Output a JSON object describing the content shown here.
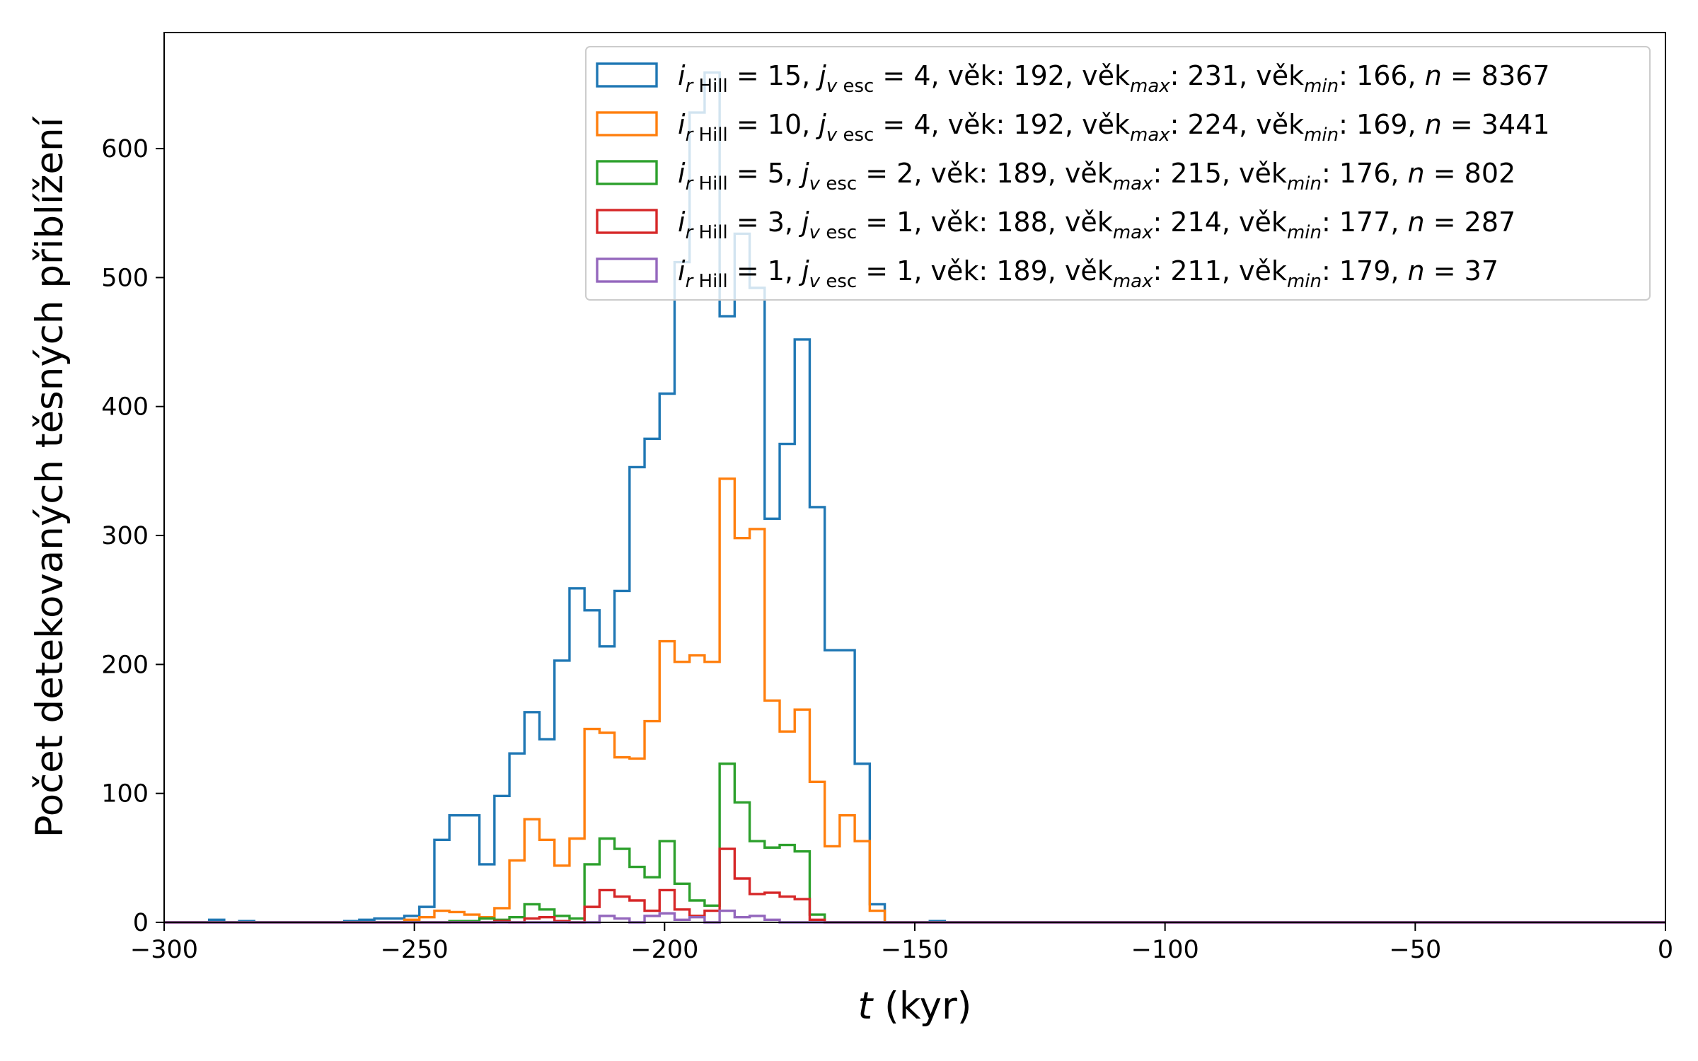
{
  "chart_data": {
    "type": "histogram-step",
    "xlabel_var": "t",
    "xlabel_unit": " (kyr)",
    "ylabel": "Počet detekovaných těsných přiblížení",
    "xlim": [
      -300,
      0
    ],
    "ylim": [
      0,
      690
    ],
    "grid": false,
    "legend_position": "top-right",
    "x_ticks": [
      -300,
      -250,
      -200,
      -150,
      -100,
      -50,
      0
    ],
    "x_tick_labels": [
      "−300",
      "−250",
      "−200",
      "−150",
      "−100",
      "−50",
      "0"
    ],
    "y_ticks": [
      0,
      100,
      200,
      300,
      400,
      500,
      600
    ],
    "y_tick_labels": [
      "0",
      "100",
      "200",
      "300",
      "400",
      "500",
      "600"
    ],
    "bin_start": -300,
    "bin_width": 3,
    "series": [
      {
        "name": "i_rHill = 15, j_vesc = 4, věk: 192, věk_max: 231, věk_min: 166, n = 8367",
        "legend": {
          "i": "15",
          "j": "4",
          "vek": "192",
          "vek_max": "231",
          "vek_min": "166",
          "n": "8367"
        },
        "color": "#1f77b4",
        "bins": [
          [
            -291,
            -288,
            2
          ],
          [
            -285,
            -282,
            1
          ],
          [
            -264,
            -261,
            1
          ],
          [
            -261,
            -258,
            2
          ],
          [
            -258,
            -255,
            3
          ],
          [
            -255,
            -252,
            3
          ],
          [
            -252,
            -249,
            5
          ],
          [
            -249,
            -246,
            12
          ],
          [
            -246,
            -243,
            64
          ],
          [
            -243,
            -240,
            83
          ],
          [
            -240,
            -237,
            83
          ],
          [
            -237,
            -234,
            45
          ],
          [
            -234,
            -231,
            98
          ],
          [
            -231,
            -228,
            131
          ],
          [
            -228,
            -225,
            163
          ],
          [
            -225,
            -222,
            142
          ],
          [
            -222,
            -219,
            203
          ],
          [
            -219,
            -216,
            259
          ],
          [
            -216,
            -213,
            242
          ],
          [
            -213,
            -210,
            214
          ],
          [
            -210,
            -207,
            257
          ],
          [
            -207,
            -204,
            353
          ],
          [
            -204,
            -201,
            375
          ],
          [
            -201,
            -198,
            410
          ],
          [
            -198,
            -195,
            512
          ],
          [
            -195,
            -192,
            628
          ],
          [
            -192,
            -189,
            659
          ],
          [
            -189,
            -186,
            470
          ],
          [
            -186,
            -183,
            534
          ],
          [
            -183,
            -180,
            492
          ],
          [
            -180,
            -177,
            313
          ],
          [
            -177,
            -174,
            371
          ],
          [
            -174,
            -171,
            452
          ],
          [
            -171,
            -168,
            322
          ],
          [
            -168,
            -165,
            211
          ],
          [
            -165,
            -162,
            211
          ],
          [
            -162,
            -159,
            123
          ],
          [
            -159,
            -156,
            14
          ],
          [
            -147,
            -144,
            1
          ]
        ]
      },
      {
        "name": "i_rHill = 10, j_vesc = 4, věk: 192, věk_max: 224, věk_min: 169, n = 3441",
        "legend": {
          "i": "10",
          "j": "4",
          "vek": "192",
          "vek_max": "224",
          "vek_min": "169",
          "n": "3441"
        },
        "color": "#ff7f0e",
        "bins": [
          [
            -252,
            -249,
            2
          ],
          [
            -249,
            -246,
            4
          ],
          [
            -246,
            -243,
            9
          ],
          [
            -243,
            -240,
            8
          ],
          [
            -240,
            -237,
            6
          ],
          [
            -237,
            -234,
            4
          ],
          [
            -234,
            -231,
            11
          ],
          [
            -231,
            -228,
            48
          ],
          [
            -228,
            -225,
            80
          ],
          [
            -225,
            -222,
            64
          ],
          [
            -222,
            -219,
            44
          ],
          [
            -219,
            -216,
            65
          ],
          [
            -216,
            -213,
            150
          ],
          [
            -213,
            -210,
            147
          ],
          [
            -210,
            -207,
            128
          ],
          [
            -207,
            -204,
            127
          ],
          [
            -204,
            -201,
            156
          ],
          [
            -201,
            -198,
            218
          ],
          [
            -198,
            -195,
            202
          ],
          [
            -195,
            -192,
            207
          ],
          [
            -192,
            -189,
            202
          ],
          [
            -189,
            -186,
            344
          ],
          [
            -186,
            -183,
            298
          ],
          [
            -183,
            -180,
            305
          ],
          [
            -180,
            -177,
            172
          ],
          [
            -177,
            -174,
            148
          ],
          [
            -174,
            -171,
            165
          ],
          [
            -171,
            -168,
            109
          ],
          [
            -168,
            -165,
            59
          ],
          [
            -165,
            -162,
            83
          ],
          [
            -162,
            -159,
            63
          ],
          [
            -159,
            -156,
            9
          ]
        ]
      },
      {
        "name": "i_rHill = 5, j_vesc = 2, věk: 189, věk_max: 215, věk_min: 176, n = 802",
        "legend": {
          "i": " 5",
          "j": "2",
          "vek": "189",
          "vek_max": "215",
          "vek_min": "176",
          "n": "802"
        },
        "color": "#2ca02c",
        "bins": [
          [
            -243,
            -240,
            1
          ],
          [
            -240,
            -237,
            1
          ],
          [
            -237,
            -234,
            3
          ],
          [
            -234,
            -231,
            2
          ],
          [
            -231,
            -228,
            4
          ],
          [
            -228,
            -225,
            14
          ],
          [
            -225,
            -222,
            10
          ],
          [
            -222,
            -219,
            5
          ],
          [
            -219,
            -216,
            3
          ],
          [
            -216,
            -213,
            45
          ],
          [
            -213,
            -210,
            65
          ],
          [
            -210,
            -207,
            57
          ],
          [
            -207,
            -204,
            43
          ],
          [
            -204,
            -201,
            35
          ],
          [
            -201,
            -198,
            63
          ],
          [
            -198,
            -195,
            30
          ],
          [
            -195,
            -192,
            17
          ],
          [
            -192,
            -189,
            13
          ],
          [
            -189,
            -186,
            123
          ],
          [
            -186,
            -183,
            93
          ],
          [
            -183,
            -180,
            63
          ],
          [
            -180,
            -177,
            58
          ],
          [
            -177,
            -174,
            60
          ],
          [
            -174,
            -171,
            55
          ],
          [
            -171,
            -168,
            6
          ]
        ]
      },
      {
        "name": "i_rHill = 3, j_vesc = 1, věk: 188, věk_max: 214, věk_min: 177, n = 287",
        "legend": {
          "i": " 3",
          "j": "1",
          "vek": "188",
          "vek_max": "214",
          "vek_min": "177",
          "n": "287"
        },
        "color": "#d62728",
        "bins": [
          [
            -234,
            -231,
            1
          ],
          [
            -228,
            -225,
            3
          ],
          [
            -225,
            -222,
            4
          ],
          [
            -222,
            -219,
            1
          ],
          [
            -216,
            -213,
            12
          ],
          [
            -213,
            -210,
            25
          ],
          [
            -210,
            -207,
            20
          ],
          [
            -207,
            -204,
            17
          ],
          [
            -204,
            -201,
            9
          ],
          [
            -201,
            -198,
            25
          ],
          [
            -198,
            -195,
            10
          ],
          [
            -195,
            -192,
            5
          ],
          [
            -192,
            -189,
            9
          ],
          [
            -189,
            -186,
            57
          ],
          [
            -186,
            -183,
            34
          ],
          [
            -183,
            -180,
            22
          ],
          [
            -180,
            -177,
            23
          ],
          [
            -177,
            -174,
            20
          ],
          [
            -174,
            -171,
            18
          ],
          [
            -171,
            -168,
            2
          ]
        ]
      },
      {
        "name": "i_rHill = 1, j_vesc = 1, věk: 189, věk_max: 211, věk_min: 179, n = 37",
        "legend": {
          "i": " 1",
          "j": "1",
          "vek": "189",
          "vek_max": "211",
          "vek_min": "179",
          "n": "37"
        },
        "color": "#9467bd",
        "bins": [
          [
            -213,
            -210,
            5
          ],
          [
            -210,
            -207,
            3
          ],
          [
            -204,
            -201,
            5
          ],
          [
            -201,
            -198,
            7
          ],
          [
            -198,
            -195,
            2
          ],
          [
            -195,
            -192,
            4
          ],
          [
            -189,
            -186,
            9
          ],
          [
            -186,
            -183,
            4
          ],
          [
            -183,
            -180,
            5
          ],
          [
            -180,
            -177,
            2
          ]
        ]
      }
    ]
  }
}
